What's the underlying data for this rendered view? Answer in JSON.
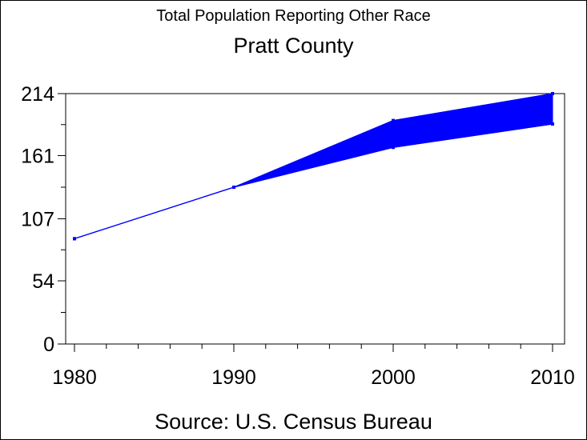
{
  "chart_data": {
    "type": "area",
    "title": "Total Population Reporting Other Race",
    "subtitle": "Pratt County",
    "source": "Source: U.S. Census Bureau",
    "xlabel": "",
    "ylabel": "",
    "x": [
      1980,
      1990,
      2000,
      2010
    ],
    "x_ticks": [
      1980,
      1990,
      2000,
      2010
    ],
    "xlim": [
      1980,
      2010
    ],
    "y_ticks": [
      0,
      54,
      107,
      161,
      214
    ],
    "ylim": [
      0,
      214
    ],
    "grid": false,
    "series": [
      {
        "values": [
          90,
          134,
          191,
          214
        ]
      },
      {
        "values": [
          90,
          134,
          168,
          188
        ]
      }
    ],
    "colors": {
      "band": "#0000ff",
      "axis": "#000000"
    }
  }
}
